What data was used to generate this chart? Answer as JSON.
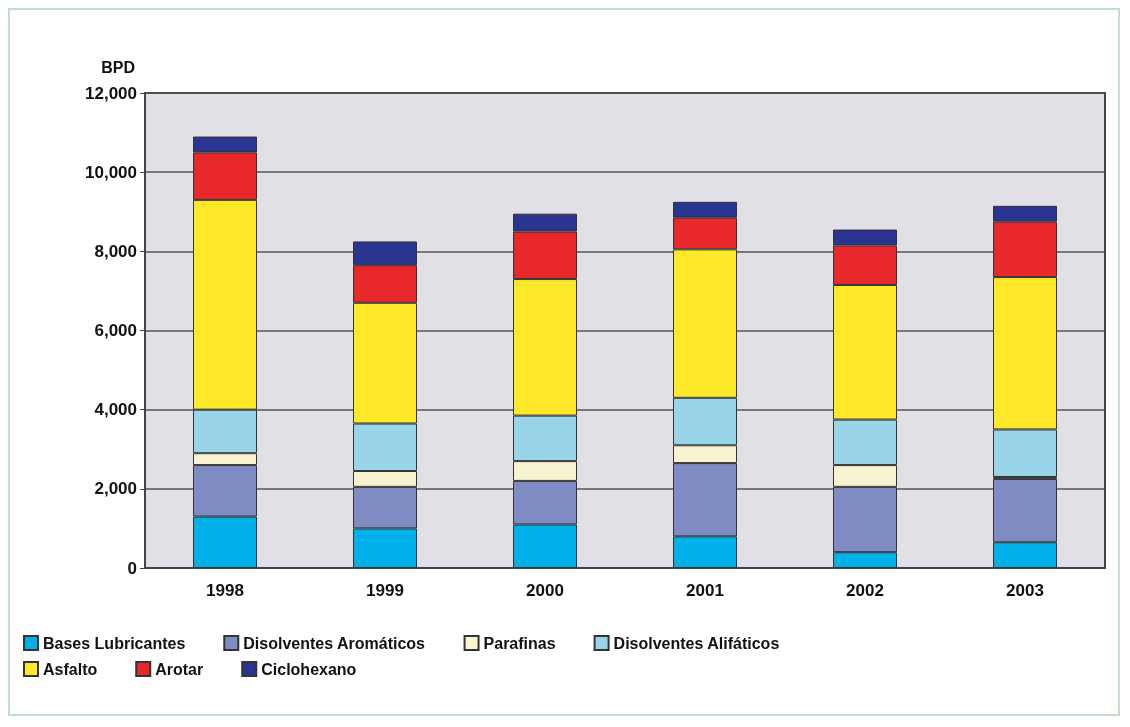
{
  "chart_data": {
    "type": "bar",
    "stacked": true,
    "ylabel": "BPD",
    "categories": [
      "1998",
      "1999",
      "2000",
      "2001",
      "2002",
      "2003"
    ],
    "series": [
      {
        "name": "Bases Lubricantes",
        "color": "#00b0e8",
        "values": [
          1300,
          1000,
          1100,
          800,
          400,
          650
        ]
      },
      {
        "name": "Disolventes Aromáticos",
        "color": "#7f8cc4",
        "values": [
          1300,
          1050,
          1100,
          1850,
          1650,
          1600
        ]
      },
      {
        "name": "Parafinas",
        "color": "#f8f4d0",
        "values": [
          300,
          400,
          500,
          450,
          550,
          50
        ]
      },
      {
        "name": "Disolventes Alifáticos",
        "color": "#99d5e8",
        "values": [
          1100,
          1200,
          1150,
          1200,
          1150,
          1200
        ]
      },
      {
        "name": "Asfalto",
        "color": "#fde829",
        "values": [
          5300,
          3050,
          3450,
          3750,
          3400,
          3850
        ]
      },
      {
        "name": "Arotar",
        "color": "#e8282a",
        "values": [
          1200,
          950,
          1200,
          800,
          1000,
          1400
        ]
      },
      {
        "name": "Ciclohexano",
        "color": "#2a3592",
        "values": [
          400,
          600,
          450,
          400,
          400,
          400
        ]
      }
    ],
    "ylim": [
      0,
      12000
    ],
    "yticks": [
      0,
      {
        "value": 2000,
        "label": "2,000"
      },
      {
        "value": 4000,
        "label": "4,000"
      },
      {
        "value": 6000,
        "label": "6,000"
      },
      {
        "value": 8000,
        "label": "8,000"
      },
      {
        "value": 10000,
        "label": "10,000"
      },
      {
        "value": 12000,
        "label": "12,000"
      }
    ],
    "grid": "y",
    "legend": "bottom"
  }
}
